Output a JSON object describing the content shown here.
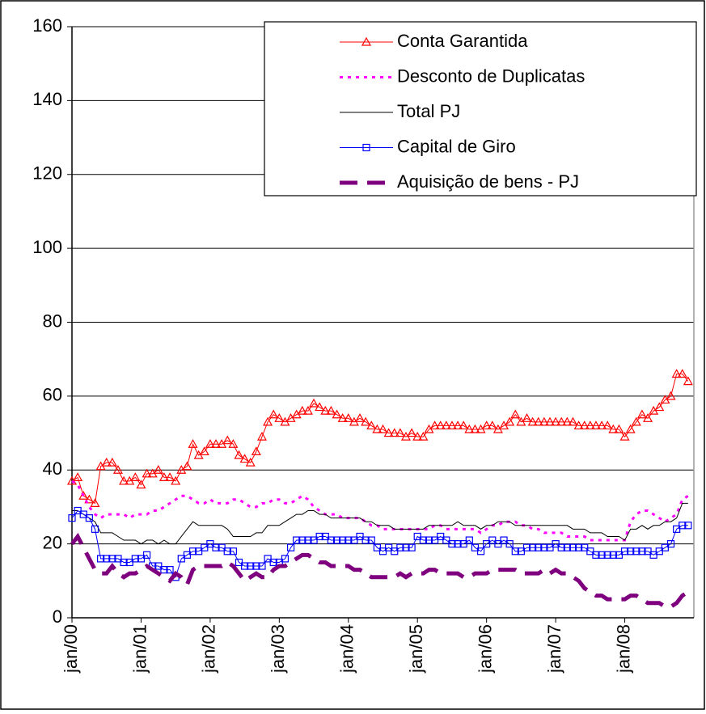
{
  "chart_data": {
    "type": "line",
    "categories": [
      "jan/00",
      null,
      null,
      null,
      null,
      null,
      null,
      null,
      null,
      null,
      null,
      null,
      "jan/01",
      null,
      null,
      null,
      null,
      null,
      null,
      null,
      null,
      null,
      null,
      null,
      "jan/02",
      null,
      null,
      null,
      null,
      null,
      null,
      null,
      null,
      null,
      null,
      null,
      "jan/03",
      null,
      null,
      null,
      null,
      null,
      null,
      null,
      null,
      null,
      null,
      null,
      "jan/04",
      null,
      null,
      null,
      null,
      null,
      null,
      null,
      null,
      null,
      null,
      null,
      "jan/05",
      null,
      null,
      null,
      null,
      null,
      null,
      null,
      null,
      null,
      null,
      null,
      "jan/06",
      null,
      null,
      null,
      null,
      null,
      null,
      null,
      null,
      null,
      null,
      null,
      "jan/07",
      null,
      null,
      null,
      null,
      null,
      null,
      null,
      null,
      null,
      null,
      null,
      "jan/08",
      null,
      null,
      null,
      null,
      null,
      null,
      null,
      null,
      null,
      null,
      null
    ],
    "ylim": [
      0,
      160
    ],
    "yticks": [
      0,
      20,
      40,
      60,
      80,
      100,
      120,
      140,
      160
    ],
    "grid": true,
    "legend": "top-right",
    "series": [
      {
        "name": "Conta Garantida",
        "color": "#ff0000",
        "style": "solid",
        "marker": "triangle",
        "width": 1,
        "values": [
          37,
          38,
          33,
          32,
          31,
          41,
          42,
          42,
          40,
          37,
          37,
          38,
          36,
          39,
          39,
          40,
          38,
          38,
          37,
          40,
          41,
          47,
          44,
          45,
          47,
          47,
          47,
          48,
          47,
          44,
          43,
          42,
          45,
          49,
          53,
          55,
          54,
          53,
          54,
          55,
          56,
          56,
          58,
          57,
          56,
          56,
          55,
          54,
          54,
          53,
          54,
          53,
          52,
          51,
          51,
          50,
          50,
          50,
          49,
          50,
          49,
          49,
          51,
          52,
          52,
          52,
          52,
          52,
          52,
          51,
          51,
          51,
          52,
          52,
          51,
          52,
          53,
          55,
          53,
          54,
          53,
          53,
          53,
          53,
          53,
          53,
          53,
          53,
          52,
          52,
          52,
          52,
          52,
          52,
          51,
          51,
          49,
          51,
          53,
          55,
          54,
          56,
          57,
          59,
          60,
          66,
          66,
          64
        ]
      },
      {
        "name": "Desconto de Duplicatas",
        "color": "#ff00ff",
        "style": "dotted",
        "width": 3,
        "values": [
          37,
          36,
          33,
          30,
          28,
          27,
          28,
          28,
          28,
          28,
          27,
          28,
          28,
          28,
          29,
          29,
          30,
          31,
          32,
          33,
          33,
          32,
          31,
          31,
          32,
          31,
          31,
          31,
          32,
          32,
          31,
          30,
          30,
          31,
          31,
          32,
          32,
          31,
          31,
          32,
          33,
          32,
          30,
          29,
          28,
          28,
          28,
          27,
          27,
          27,
          27,
          26,
          25,
          25,
          24,
          24,
          24,
          24,
          24,
          24,
          24,
          24,
          24,
          25,
          25,
          24,
          24,
          24,
          24,
          24,
          24,
          23,
          24,
          25,
          25,
          26,
          26,
          26,
          25,
          25,
          24,
          24,
          23,
          23,
          23,
          23,
          22,
          22,
          22,
          22,
          21,
          21,
          21,
          21,
          21,
          21,
          21,
          26,
          28,
          29,
          29,
          28,
          27,
          26,
          27,
          28,
          32,
          33
        ]
      },
      {
        "name": "Total PJ",
        "color": "#000000",
        "style": "solid",
        "width": 1,
        "values": [
          29,
          29,
          28,
          27,
          26,
          23,
          23,
          23,
          22,
          21,
          21,
          21,
          20,
          21,
          21,
          20,
          21,
          20,
          20,
          22,
          24,
          26,
          25,
          25,
          25,
          25,
          25,
          24,
          22,
          22,
          22,
          22,
          23,
          23,
          25,
          25,
          25,
          26,
          27,
          28,
          28,
          29,
          29,
          28,
          28,
          27,
          27,
          27,
          27,
          27,
          27,
          26,
          26,
          25,
          25,
          25,
          24,
          24,
          24,
          24,
          24,
          24,
          25,
          25,
          25,
          25,
          25,
          26,
          25,
          25,
          25,
          24,
          25,
          25,
          26,
          26,
          26,
          25,
          25,
          25,
          25,
          25,
          25,
          25,
          25,
          25,
          25,
          24,
          24,
          24,
          23,
          23,
          23,
          22,
          22,
          22,
          21,
          24,
          24,
          25,
          24,
          25,
          25,
          26,
          26,
          27,
          31,
          31
        ]
      },
      {
        "name": "Capital de Giro",
        "color": "#0000ff",
        "style": "solid",
        "marker": "square",
        "width": 1,
        "values": [
          27,
          29,
          28,
          27,
          24,
          16,
          16,
          16,
          16,
          15,
          15,
          16,
          16,
          17,
          14,
          14,
          13,
          13,
          11,
          16,
          17,
          18,
          18,
          19,
          20,
          19,
          19,
          18,
          18,
          15,
          14,
          14,
          14,
          14,
          16,
          15,
          15,
          16,
          19,
          21,
          21,
          21,
          21,
          22,
          22,
          21,
          21,
          21,
          21,
          21,
          22,
          21,
          21,
          19,
          18,
          19,
          18,
          19,
          19,
          19,
          22,
          21,
          21,
          21,
          22,
          21,
          20,
          20,
          20,
          21,
          19,
          18,
          20,
          21,
          20,
          21,
          20,
          18,
          18,
          19,
          19,
          19,
          19,
          19,
          20,
          19,
          19,
          19,
          19,
          19,
          18,
          17,
          17,
          17,
          17,
          17,
          18,
          18,
          18,
          18,
          18,
          17,
          18,
          19,
          20,
          24,
          25,
          25
        ]
      },
      {
        "name": "Aquisição de bens - PJ",
        "color": "#7f007f",
        "style": "dashed",
        "width": 5,
        "values": [
          20,
          22,
          19,
          16,
          13,
          12,
          12,
          14,
          12,
          11,
          12,
          12,
          13,
          14,
          13,
          12,
          11,
          10,
          12,
          11,
          9,
          13,
          14,
          14,
          14,
          14,
          14,
          15,
          14,
          12,
          10,
          11,
          12,
          11,
          11,
          13,
          14,
          14,
          15,
          16,
          17,
          17,
          16,
          15,
          15,
          14,
          14,
          14,
          14,
          13,
          13,
          12,
          11,
          11,
          11,
          11,
          11,
          12,
          11,
          12,
          12,
          12,
          13,
          13,
          12,
          12,
          12,
          12,
          11,
          11,
          12,
          12,
          12,
          13,
          13,
          13,
          13,
          13,
          12,
          12,
          12,
          12,
          13,
          12,
          13,
          12,
          12,
          11,
          10,
          8,
          7,
          6,
          6,
          5,
          5,
          5,
          5,
          6,
          6,
          5,
          4,
          4,
          4,
          3,
          3,
          4,
          6,
          7
        ]
      }
    ]
  }
}
